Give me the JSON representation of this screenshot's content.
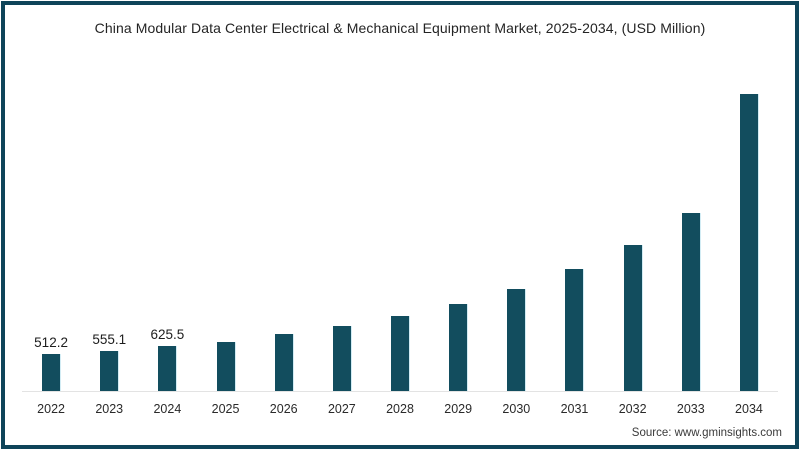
{
  "chart": {
    "title": "China Modular Data Center Electrical & Mechanical Equipment Market, 2025-2034, (USD Million)",
    "source": "Source: www.gminsights.com",
    "frame_color": "#0e4459",
    "axis_line_color": "#e3e3e3"
  },
  "chart_data": {
    "type": "bar",
    "title": "China Modular Data Center Electrical & Mechanical Equipment Market, 2025-2034, (USD Million)",
    "categories": [
      "2022",
      "2023",
      "2024",
      "2025",
      "2026",
      "2027",
      "2028",
      "2029",
      "2030",
      "2031",
      "2032",
      "2033",
      "2034"
    ],
    "values": [
      512.2,
      555.1,
      625.5,
      690,
      800,
      910,
      1045,
      1220,
      1430,
      1710,
      2040,
      2485,
      4155
    ],
    "value_labels": [
      "512.2",
      "555.1",
      "625.5",
      "",
      "",
      "",
      "",
      "",
      "",
      "",
      "",
      "",
      ""
    ],
    "xlabel": "",
    "ylabel": "USD Million",
    "ylim": [
      0,
      4400
    ],
    "y_axis_visible": false,
    "grid": false,
    "legend_position": "none",
    "bar_color": "#124D5E"
  }
}
